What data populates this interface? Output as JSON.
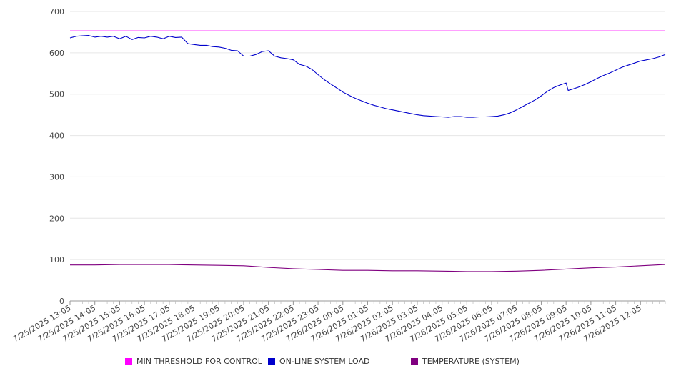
{
  "chart_data": {
    "type": "line",
    "title": "",
    "xlabel": "",
    "ylabel": "",
    "ylim": [
      0,
      700
    ],
    "y_ticks": [
      0,
      100,
      200,
      300,
      400,
      500,
      600,
      700
    ],
    "grid": true,
    "legend_position": "bottom",
    "x_tick_labels": [
      "7/25/2025 13:05",
      "7/25/2025 14:05",
      "7/25/2025 15:05",
      "7/25/2025 16:05",
      "7/25/2025 17:05",
      "7/25/2025 18:05",
      "7/25/2025 19:05",
      "7/25/2025 20:05",
      "7/25/2025 21:05",
      "7/25/2025 22:05",
      "7/25/2025 23:05",
      "7/26/2025 00:05",
      "7/26/2025 01:05",
      "7/26/2025 02:05",
      "7/26/2025 03:05",
      "7/26/2025 04:05",
      "7/26/2025 05:05",
      "7/26/2025 06:05",
      "7/26/2025 07:05",
      "7/26/2025 08:05",
      "7/26/2025 09:05",
      "7/26/2025 10:05",
      "7/26/2025 11:05",
      "7/26/2025 12:05"
    ],
    "x_start": "7/25/2025 13:05",
    "x_end": "7/26/2025 13:05",
    "series": [
      {
        "name": "MIN THRESHOLD FOR CONTROL",
        "color": "#ff00ff",
        "points": [
          [
            "7/25/2025 13:05",
            653
          ],
          [
            "7/26/2025 13:05",
            653
          ]
        ]
      },
      {
        "name": "ON-LINE SYSTEM LOAD",
        "color": "#0000cc",
        "points": [
          [
            "7/25/2025 13:05",
            636
          ],
          [
            "7/25/2025 13:20",
            640
          ],
          [
            "7/25/2025 13:35",
            641
          ],
          [
            "7/25/2025 13:50",
            642
          ],
          [
            "7/25/2025 14:05",
            638
          ],
          [
            "7/25/2025 14:20",
            640
          ],
          [
            "7/25/2025 14:35",
            638
          ],
          [
            "7/25/2025 14:50",
            640
          ],
          [
            "7/25/2025 15:05",
            634
          ],
          [
            "7/25/2025 15:20",
            640
          ],
          [
            "7/25/2025 15:35",
            632
          ],
          [
            "7/25/2025 15:50",
            637
          ],
          [
            "7/25/2025 16:05",
            636
          ],
          [
            "7/25/2025 16:20",
            640
          ],
          [
            "7/25/2025 16:35",
            638
          ],
          [
            "7/25/2025 16:50",
            634
          ],
          [
            "7/25/2025 17:05",
            640
          ],
          [
            "7/25/2025 17:20",
            637
          ],
          [
            "7/25/2025 17:35",
            638
          ],
          [
            "7/25/2025 17:50",
            622
          ],
          [
            "7/25/2025 18:05",
            620
          ],
          [
            "7/25/2025 18:20",
            618
          ],
          [
            "7/25/2025 18:35",
            618
          ],
          [
            "7/25/2025 18:50",
            615
          ],
          [
            "7/25/2025 19:05",
            614
          ],
          [
            "7/25/2025 19:20",
            611
          ],
          [
            "7/25/2025 19:35",
            606
          ],
          [
            "7/25/2025 19:50",
            605
          ],
          [
            "7/25/2025 20:05",
            592
          ],
          [
            "7/25/2025 20:20",
            592
          ],
          [
            "7/25/2025 20:35",
            596
          ],
          [
            "7/25/2025 20:50",
            603
          ],
          [
            "7/25/2025 21:05",
            605
          ],
          [
            "7/25/2025 21:20",
            592
          ],
          [
            "7/25/2025 21:35",
            588
          ],
          [
            "7/25/2025 21:50",
            586
          ],
          [
            "7/25/2025 22:05",
            583
          ],
          [
            "7/25/2025 22:20",
            572
          ],
          [
            "7/25/2025 22:35",
            568
          ],
          [
            "7/25/2025 22:50",
            560
          ],
          [
            "7/25/2025 23:05",
            547
          ],
          [
            "7/25/2025 23:20",
            535
          ],
          [
            "7/25/2025 23:35",
            525
          ],
          [
            "7/25/2025 23:50",
            515
          ],
          [
            "7/26/2025 00:05",
            505
          ],
          [
            "7/26/2025 00:20",
            497
          ],
          [
            "7/26/2025 00:35",
            490
          ],
          [
            "7/26/2025 00:50",
            484
          ],
          [
            "7/26/2025 01:05",
            478
          ],
          [
            "7/26/2025 01:20",
            473
          ],
          [
            "7/26/2025 01:35",
            469
          ],
          [
            "7/26/2025 01:50",
            465
          ],
          [
            "7/26/2025 02:05",
            462
          ],
          [
            "7/26/2025 02:20",
            459
          ],
          [
            "7/26/2025 02:35",
            456
          ],
          [
            "7/26/2025 02:50",
            453
          ],
          [
            "7/26/2025 03:05",
            450
          ],
          [
            "7/26/2025 03:20",
            448
          ],
          [
            "7/26/2025 03:35",
            447
          ],
          [
            "7/26/2025 03:50",
            446
          ],
          [
            "7/26/2025 04:05",
            445
          ],
          [
            "7/26/2025 04:20",
            444
          ],
          [
            "7/26/2025 04:35",
            446
          ],
          [
            "7/26/2025 04:50",
            446
          ],
          [
            "7/26/2025 05:05",
            444
          ],
          [
            "7/26/2025 05:20",
            444
          ],
          [
            "7/26/2025 05:35",
            445
          ],
          [
            "7/26/2025 05:50",
            445
          ],
          [
            "7/26/2025 06:05",
            446
          ],
          [
            "7/26/2025 06:20",
            447
          ],
          [
            "7/26/2025 06:35",
            450
          ],
          [
            "7/26/2025 06:50",
            455
          ],
          [
            "7/26/2025 07:05",
            462
          ],
          [
            "7/26/2025 07:20",
            470
          ],
          [
            "7/26/2025 07:35",
            478
          ],
          [
            "7/26/2025 07:50",
            486
          ],
          [
            "7/26/2025 08:05",
            496
          ],
          [
            "7/26/2025 08:20",
            507
          ],
          [
            "7/26/2025 08:35",
            516
          ],
          [
            "7/26/2025 08:50",
            522
          ],
          [
            "7/26/2025 09:05",
            527
          ],
          [
            "7/26/2025 09:10",
            509
          ],
          [
            "7/26/2025 09:20",
            512
          ],
          [
            "7/26/2025 09:35",
            517
          ],
          [
            "7/26/2025 09:50",
            523
          ],
          [
            "7/26/2025 10:05",
            530
          ],
          [
            "7/26/2025 10:20",
            538
          ],
          [
            "7/26/2025 10:35",
            545
          ],
          [
            "7/26/2025 10:50",
            551
          ],
          [
            "7/26/2025 11:05",
            558
          ],
          [
            "7/26/2025 11:20",
            565
          ],
          [
            "7/26/2025 11:35",
            570
          ],
          [
            "7/26/2025 11:50",
            575
          ],
          [
            "7/26/2025 12:05",
            580
          ],
          [
            "7/26/2025 12:20",
            583
          ],
          [
            "7/26/2025 12:35",
            586
          ],
          [
            "7/26/2025 12:50",
            590
          ],
          [
            "7/26/2025 13:05",
            596
          ]
        ]
      },
      {
        "name": "TEMPERATURE (SYSTEM)",
        "color": "#800080",
        "points": [
          [
            "7/25/2025 13:05",
            87
          ],
          [
            "7/25/2025 14:05",
            87
          ],
          [
            "7/25/2025 15:05",
            88
          ],
          [
            "7/25/2025 16:05",
            88
          ],
          [
            "7/25/2025 17:05",
            88
          ],
          [
            "7/25/2025 18:05",
            87
          ],
          [
            "7/25/2025 19:05",
            86
          ],
          [
            "7/25/2025 20:05",
            85
          ],
          [
            "7/25/2025 21:05",
            81
          ],
          [
            "7/25/2025 22:05",
            78
          ],
          [
            "7/25/2025 23:05",
            76
          ],
          [
            "7/26/2025 00:05",
            74
          ],
          [
            "7/26/2025 01:05",
            74
          ],
          [
            "7/26/2025 02:05",
            73
          ],
          [
            "7/26/2025 03:05",
            73
          ],
          [
            "7/26/2025 04:05",
            72
          ],
          [
            "7/26/2025 05:05",
            71
          ],
          [
            "7/26/2025 06:05",
            71
          ],
          [
            "7/26/2025 07:05",
            72
          ],
          [
            "7/26/2025 08:05",
            74
          ],
          [
            "7/26/2025 09:05",
            77
          ],
          [
            "7/26/2025 10:05",
            80
          ],
          [
            "7/26/2025 11:05",
            82
          ],
          [
            "7/26/2025 12:05",
            85
          ],
          [
            "7/26/2025 13:05",
            88
          ]
        ]
      }
    ]
  },
  "colors": {
    "grid": "#e6e6e6",
    "axis": "#999999",
    "text": "#444444"
  }
}
